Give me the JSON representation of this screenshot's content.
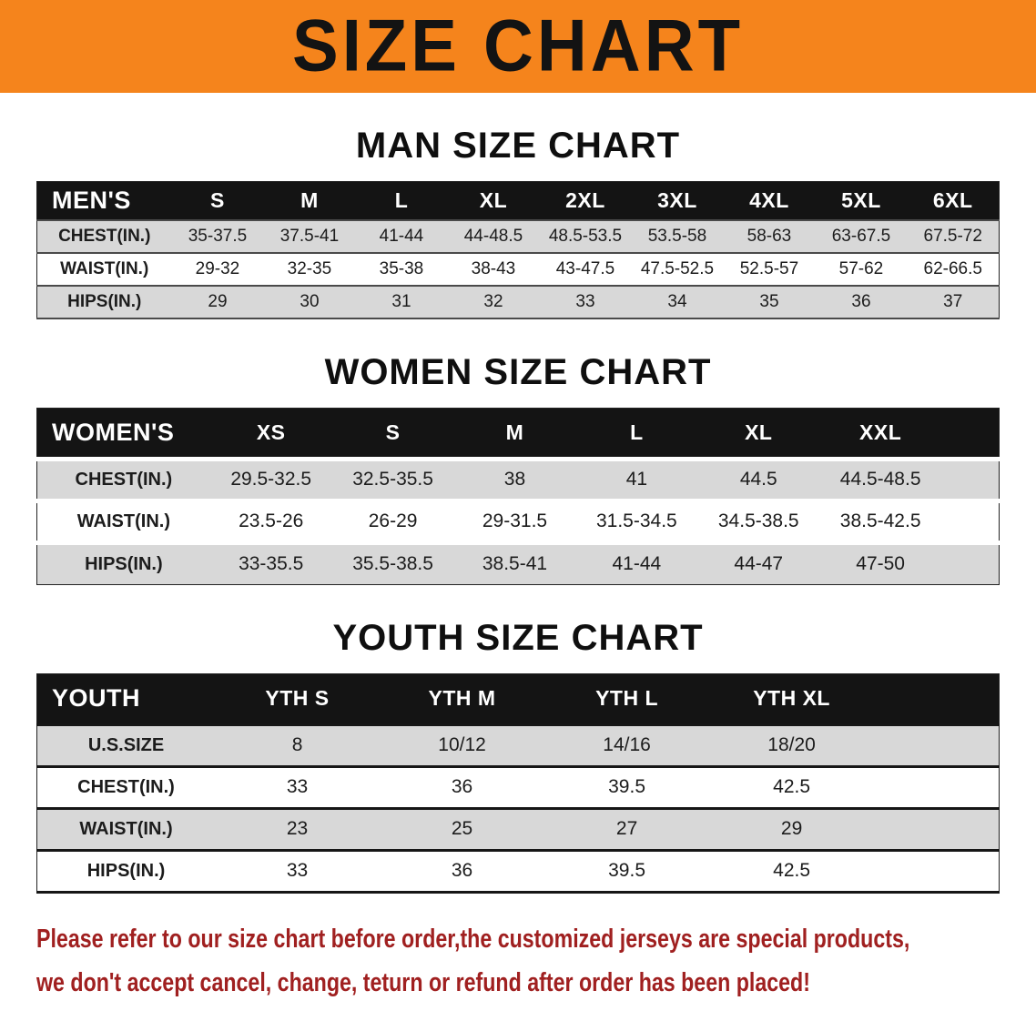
{
  "banner": {
    "title": "SIZE CHART",
    "bg_color": "#f5841c",
    "text_color": "#131313"
  },
  "colors": {
    "table_header_bg": "#141414",
    "table_header_text": "#ffffff",
    "row_stripe": "#d8d8d8",
    "disclaimer_text": "#a02020"
  },
  "sections": [
    {
      "heading": "MAN SIZE CHART",
      "table_name": "men-size-table",
      "header": [
        "MEN'S",
        "S",
        "M",
        "L",
        "XL",
        "2XL",
        "3XL",
        "4XL",
        "5XL",
        "6XL"
      ],
      "rows": [
        {
          "label": "CHEST(IN.)",
          "values": [
            "35-37.5",
            "37.5-41",
            "41-44",
            "44-48.5",
            "48.5-53.5",
            "53.5-58",
            "58-63",
            "63-67.5",
            "67.5-72"
          ]
        },
        {
          "label": "WAIST(IN.)",
          "values": [
            "29-32",
            "32-35",
            "35-38",
            "38-43",
            "43-47.5",
            "47.5-52.5",
            "52.5-57",
            "57-62",
            "62-66.5"
          ]
        },
        {
          "label": "HIPS(IN.)",
          "values": [
            "29",
            "30",
            "31",
            "32",
            "33",
            "34",
            "35",
            "36",
            "37"
          ]
        }
      ]
    },
    {
      "heading": "WOMEN SIZE CHART",
      "table_name": "women-size-table",
      "header": [
        "WOMEN'S",
        "XS",
        "S",
        "M",
        "L",
        "XL",
        "XXL"
      ],
      "rows": [
        {
          "label": "CHEST(IN.)",
          "values": [
            "29.5-32.5",
            "32.5-35.5",
            "38",
            "41",
            "44.5",
            "44.5-48.5"
          ]
        },
        {
          "label": "WAIST(IN.)",
          "values": [
            "23.5-26",
            "26-29",
            "29-31.5",
            "31.5-34.5",
            "34.5-38.5",
            "38.5-42.5"
          ]
        },
        {
          "label": "HIPS(IN.)",
          "values": [
            "33-35.5",
            "35.5-38.5",
            "38.5-41",
            "41-44",
            "44-47",
            "47-50"
          ]
        }
      ]
    },
    {
      "heading": "YOUTH SIZE CHART",
      "table_name": "youth-size-table",
      "header": [
        "YOUTH",
        "YTH S",
        "YTH M",
        "YTH L",
        "YTH XL"
      ],
      "rows": [
        {
          "label": "U.S.SIZE",
          "values": [
            "8",
            "10/12",
            "14/16",
            "18/20"
          ]
        },
        {
          "label": "CHEST(IN.)",
          "values": [
            "33",
            "36",
            "39.5",
            "42.5"
          ]
        },
        {
          "label": "WAIST(IN.)",
          "values": [
            "23",
            "25",
            "27",
            "29"
          ]
        },
        {
          "label": "HIPS(IN.)",
          "values": [
            "33",
            "36",
            "39.5",
            "42.5"
          ]
        }
      ]
    }
  ],
  "disclaimer": {
    "line1": "Please refer to our size chart before order,the customized jerseys are special products,",
    "line2": "we don't accept cancel, change, teturn or refund after order has been placed!"
  }
}
